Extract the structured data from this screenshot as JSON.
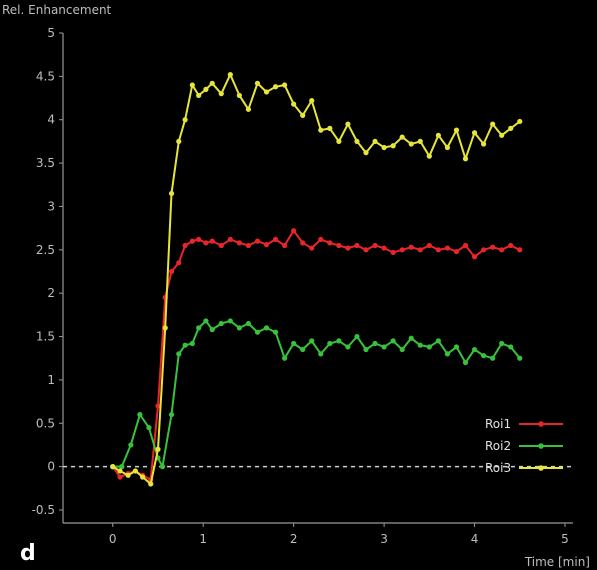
{
  "chart_data": {
    "type": "line",
    "ylabel": "Rel. Enhancement",
    "xlabel": "Time [min]",
    "panel_label": "d",
    "xlim": [
      -0.55,
      5
    ],
    "ylim": [
      -0.65,
      5
    ],
    "xticks": [
      0,
      1,
      2,
      3,
      4,
      5
    ],
    "yticks": [
      -0.5,
      0,
      0.5,
      1,
      1.5,
      2,
      2.5,
      3,
      3.5,
      4,
      4.5,
      5
    ],
    "ytick_labels": [
      "-0.5",
      "0",
      "0.5",
      "1",
      "1.5",
      "2",
      "2.5",
      "3",
      "3.5",
      "4",
      "4.5",
      "5"
    ],
    "baseline": 0,
    "baseline_style": "dashed",
    "legend_position": "lower-right",
    "background": "#000000",
    "series": [
      {
        "name": "Roi1",
        "color": "#e8262a",
        "x": [
          0.0,
          0.08,
          0.17,
          0.25,
          0.33,
          0.42,
          0.5,
          0.58,
          0.65,
          0.73,
          0.8,
          0.88,
          0.95,
          1.03,
          1.1,
          1.2,
          1.3,
          1.4,
          1.5,
          1.6,
          1.7,
          1.8,
          1.9,
          2.0,
          2.1,
          2.2,
          2.3,
          2.4,
          2.5,
          2.6,
          2.7,
          2.8,
          2.9,
          3.0,
          3.1,
          3.2,
          3.3,
          3.4,
          3.5,
          3.6,
          3.7,
          3.8,
          3.9,
          4.0,
          4.1,
          4.2,
          4.3,
          4.4,
          4.5
        ],
        "values": [
          0.0,
          -0.12,
          -0.08,
          -0.05,
          -0.1,
          -0.15,
          0.7,
          1.95,
          2.25,
          2.35,
          2.55,
          2.6,
          2.62,
          2.58,
          2.6,
          2.55,
          2.62,
          2.58,
          2.55,
          2.6,
          2.56,
          2.62,
          2.55,
          2.72,
          2.58,
          2.52,
          2.62,
          2.58,
          2.55,
          2.52,
          2.55,
          2.5,
          2.55,
          2.52,
          2.47,
          2.5,
          2.53,
          2.5,
          2.55,
          2.5,
          2.52,
          2.48,
          2.55,
          2.42,
          2.5,
          2.53,
          2.5,
          2.55,
          2.5
        ]
      },
      {
        "name": "Roi2",
        "color": "#38c23b",
        "x": [
          0.0,
          0.1,
          0.2,
          0.3,
          0.4,
          0.5,
          0.55,
          0.65,
          0.73,
          0.8,
          0.88,
          0.95,
          1.03,
          1.1,
          1.2,
          1.3,
          1.4,
          1.5,
          1.6,
          1.7,
          1.8,
          1.9,
          2.0,
          2.1,
          2.2,
          2.3,
          2.4,
          2.5,
          2.6,
          2.7,
          2.8,
          2.9,
          3.0,
          3.1,
          3.2,
          3.3,
          3.4,
          3.5,
          3.6,
          3.7,
          3.8,
          3.9,
          4.0,
          4.1,
          4.2,
          4.3,
          4.4,
          4.5
        ],
        "values": [
          0.0,
          0.0,
          0.25,
          0.6,
          0.45,
          0.1,
          0.0,
          0.6,
          1.3,
          1.4,
          1.42,
          1.6,
          1.68,
          1.58,
          1.65,
          1.68,
          1.6,
          1.65,
          1.55,
          1.6,
          1.55,
          1.25,
          1.42,
          1.35,
          1.45,
          1.3,
          1.42,
          1.45,
          1.38,
          1.5,
          1.35,
          1.42,
          1.38,
          1.45,
          1.35,
          1.48,
          1.4,
          1.38,
          1.45,
          1.3,
          1.38,
          1.2,
          1.35,
          1.28,
          1.25,
          1.42,
          1.38,
          1.25
        ]
      },
      {
        "name": "Roi3",
        "color": "#e6e53a",
        "x": [
          0.0,
          0.08,
          0.17,
          0.25,
          0.33,
          0.42,
          0.5,
          0.58,
          0.65,
          0.73,
          0.8,
          0.88,
          0.95,
          1.03,
          1.1,
          1.2,
          1.3,
          1.4,
          1.5,
          1.6,
          1.7,
          1.8,
          1.9,
          2.0,
          2.1,
          2.2,
          2.3,
          2.4,
          2.5,
          2.6,
          2.7,
          2.8,
          2.9,
          3.0,
          3.1,
          3.2,
          3.3,
          3.4,
          3.5,
          3.6,
          3.7,
          3.8,
          3.9,
          4.0,
          4.1,
          4.2,
          4.3,
          4.4,
          4.5
        ],
        "values": [
          0.0,
          -0.05,
          -0.1,
          -0.05,
          -0.12,
          -0.2,
          0.2,
          1.6,
          3.15,
          3.75,
          4.0,
          4.4,
          4.28,
          4.35,
          4.42,
          4.3,
          4.52,
          4.28,
          4.12,
          4.42,
          4.32,
          4.38,
          4.4,
          4.18,
          4.05,
          4.22,
          3.88,
          3.9,
          3.75,
          3.95,
          3.75,
          3.62,
          3.75,
          3.68,
          3.7,
          3.8,
          3.72,
          3.75,
          3.58,
          3.82,
          3.68,
          3.88,
          3.55,
          3.85,
          3.72,
          3.95,
          3.82,
          3.9,
          3.98
        ]
      }
    ],
    "legend": [
      {
        "name": "Roi1",
        "color": "#e8262a"
      },
      {
        "name": "Roi2",
        "color": "#38c23b"
      },
      {
        "name": "Roi3",
        "color": "#e6e53a"
      }
    ]
  }
}
